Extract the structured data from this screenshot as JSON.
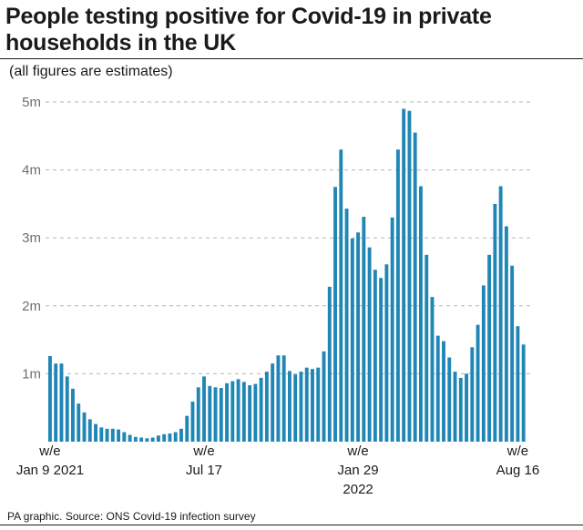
{
  "title": "People testing positive for Covid-19 in private households in the UK",
  "subtitle": "(all figures are estimates)",
  "source": "PA graphic. Source: ONS Covid-19 infection survey",
  "colors": {
    "bar": "#1f86b5",
    "grid": "#b5b5b5",
    "text": "#1a1a1a",
    "axis_text": "#6e6e6e"
  },
  "chart_data": {
    "type": "bar",
    "title": "People testing positive for Covid-19 in private households in the UK",
    "xlabel": "",
    "ylabel": "",
    "ylim": [
      0,
      5000000
    ],
    "grid": true,
    "yticks": [
      {
        "value": 1000000,
        "label": "1m"
      },
      {
        "value": 2000000,
        "label": "2m"
      },
      {
        "value": 3000000,
        "label": "3m"
      },
      {
        "value": 4000000,
        "label": "4m"
      },
      {
        "value": 5000000,
        "label": "5m"
      }
    ],
    "xticks": [
      {
        "index": 0,
        "lines": [
          "w/e",
          "Jan 9 2021"
        ]
      },
      {
        "index": 27,
        "lines": [
          "w/e",
          "Jul 17"
        ]
      },
      {
        "index": 54,
        "lines": [
          "w/e",
          "Jan 29",
          "2022"
        ]
      },
      {
        "index": 82,
        "lines": [
          "w/e",
          "Aug 16"
        ]
      }
    ],
    "series": [
      {
        "name": "People testing positive",
        "values": [
          1260000,
          1150000,
          1150000,
          960000,
          780000,
          560000,
          430000,
          330000,
          260000,
          210000,
          190000,
          190000,
          180000,
          140000,
          100000,
          70000,
          60000,
          50000,
          60000,
          90000,
          110000,
          120000,
          140000,
          190000,
          380000,
          590000,
          800000,
          960000,
          820000,
          800000,
          790000,
          860000,
          890000,
          920000,
          880000,
          830000,
          850000,
          940000,
          1030000,
          1150000,
          1270000,
          1270000,
          1040000,
          990000,
          1030000,
          1090000,
          1070000,
          1090000,
          1330000,
          2280000,
          3750000,
          4300000,
          3430000,
          2990000,
          3080000,
          3310000,
          2860000,
          2530000,
          2410000,
          2610000,
          3300000,
          4300000,
          4900000,
          4870000,
          4550000,
          3760000,
          2750000,
          2130000,
          1560000,
          1480000,
          1240000,
          1030000,
          940000,
          1000000,
          1390000,
          1720000,
          2300000,
          2750000,
          3500000,
          3760000,
          3170000,
          2590000,
          1700000,
          1430000
        ]
      }
    ]
  }
}
